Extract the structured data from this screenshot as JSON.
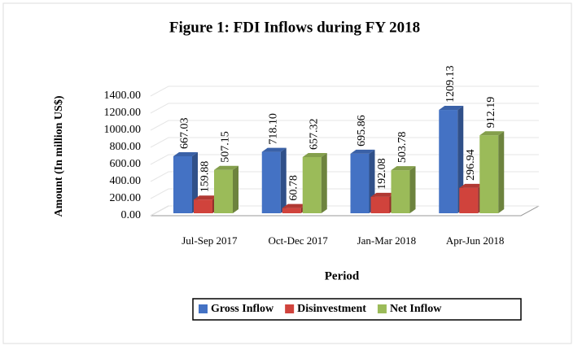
{
  "chart_data": {
    "type": "bar3d",
    "title": "Figure 1: FDI Inflows during FY 2018",
    "x_label": "Period",
    "y_label": "Amount  (In million US$)",
    "categories": [
      "Jul-Sep 2017",
      "Oct-Dec 2017",
      "Jan-Mar 2018",
      "Apr-Jun 2018"
    ],
    "series": [
      {
        "name": "Gross Inflow",
        "color": "#4472c4",
        "values": [
          667.03,
          718.1,
          695.86,
          1209.13
        ],
        "value_labels": [
          "667.03",
          "718.10",
          "695.86",
          "1209.13"
        ]
      },
      {
        "name": "Disinvestment",
        "color": "#d0433c",
        "values": [
          159.88,
          60.78,
          192.08,
          296.94
        ],
        "value_labels": [
          "159.88",
          "60.78",
          "192.08",
          "296.94"
        ]
      },
      {
        "name": "Net Inflow",
        "color": "#9bbb59",
        "values": [
          507.15,
          657.32,
          503.78,
          912.19
        ],
        "value_labels": [
          "507.15",
          "657.32",
          "503.78",
          "912.19"
        ]
      }
    ],
    "ylim": [
      0,
      1400
    ],
    "yticks": [
      {
        "value": 0,
        "label": "0.00"
      },
      {
        "value": 200,
        "label": "200.00"
      },
      {
        "value": 400,
        "label": "400.00"
      },
      {
        "value": 600,
        "label": "600.00"
      },
      {
        "value": 800,
        "label": "800.00"
      },
      {
        "value": 1000,
        "label": "1000.00"
      },
      {
        "value": 1200,
        "label": "1200.00"
      },
      {
        "value": 1400,
        "label": "1400.00"
      }
    ],
    "grid": true,
    "legend": "bottom"
  }
}
